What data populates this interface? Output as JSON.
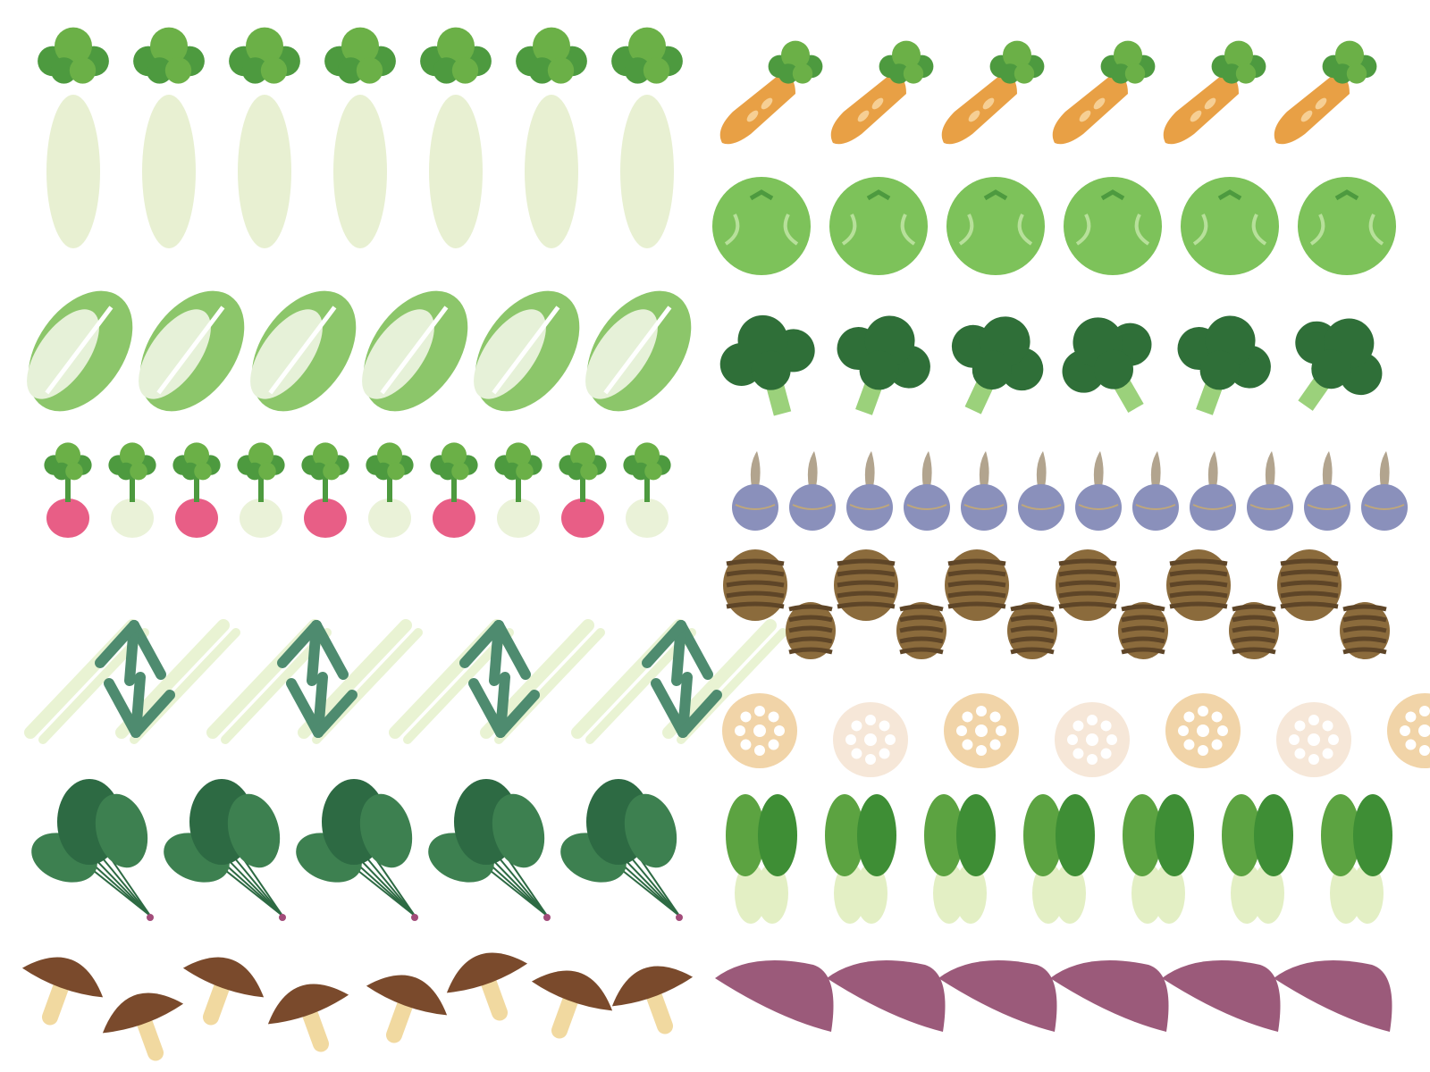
{
  "colors": {
    "background": "#ffffff",
    "leaf_light": "#6bb047",
    "leaf_mid": "#4d9a3f",
    "leaf_dark": "#2f6f38",
    "leaf_teal": "#4d8b6a",
    "daikon": "#e8f0d2",
    "carrot": "#e8a045",
    "cabbage": "#7dc25a",
    "napa_leaf": "#8cc66a",
    "napa_white": "#e6f1d8",
    "broccoli": "#2f6f38",
    "broccoli_stem": "#9bd17b",
    "radish_pink": "#e85e86",
    "turnip_white": "#eaf2d8",
    "arrowhead_purple": "#8a90bb",
    "arrowhead_sprout": "#b2a48e",
    "leek_white": "#e9f3d3",
    "leek_green": "#4e8b6f",
    "taro": "#8b6b3c",
    "taro_stripe": "#5e4527",
    "lotus_a": "#f1d4a8",
    "lotus_b": "#f6e7d8",
    "spinach_dark": "#2d6a43",
    "spinach_mid": "#3d8050",
    "spinach_root": "#a24c7a",
    "bokchoy_leaf": "#3e8e35",
    "bokchoy_leaf_light": "#5ca341",
    "bokchoy_stem": "#e3efc4",
    "shiitake_cap": "#7a4a2c",
    "shiitake_stem": "#f1d9a0",
    "sweet_potato": "#9b5a7a"
  },
  "groups": [
    {
      "name": "daikon-row",
      "item": "daikon",
      "count": 7
    },
    {
      "name": "carrot-row",
      "item": "carrot",
      "count": 6
    },
    {
      "name": "cabbage-row",
      "item": "cabbage",
      "count": 6
    },
    {
      "name": "napa-cabbage-row",
      "item": "napa-cabbage",
      "count": 6
    },
    {
      "name": "broccoli-row",
      "item": "broccoli",
      "count": 6
    },
    {
      "name": "radish-turnip-row",
      "item": "radish-turnip",
      "count": 10
    },
    {
      "name": "arrowhead-row",
      "item": "arrowhead",
      "count": 12
    },
    {
      "name": "leek-row",
      "item": "leek",
      "count": 8
    },
    {
      "name": "taro-row",
      "item": "taro",
      "count": 12
    },
    {
      "name": "lotus-root-row",
      "item": "lotus-root",
      "count": 7
    },
    {
      "name": "spinach-row",
      "item": "spinach",
      "count": 5
    },
    {
      "name": "bok-choy-row",
      "item": "bok-choy",
      "count": 7
    },
    {
      "name": "shiitake-row",
      "item": "shiitake",
      "count": 8
    },
    {
      "name": "sweet-potato-row",
      "item": "sweet-potato",
      "count": 6
    }
  ]
}
